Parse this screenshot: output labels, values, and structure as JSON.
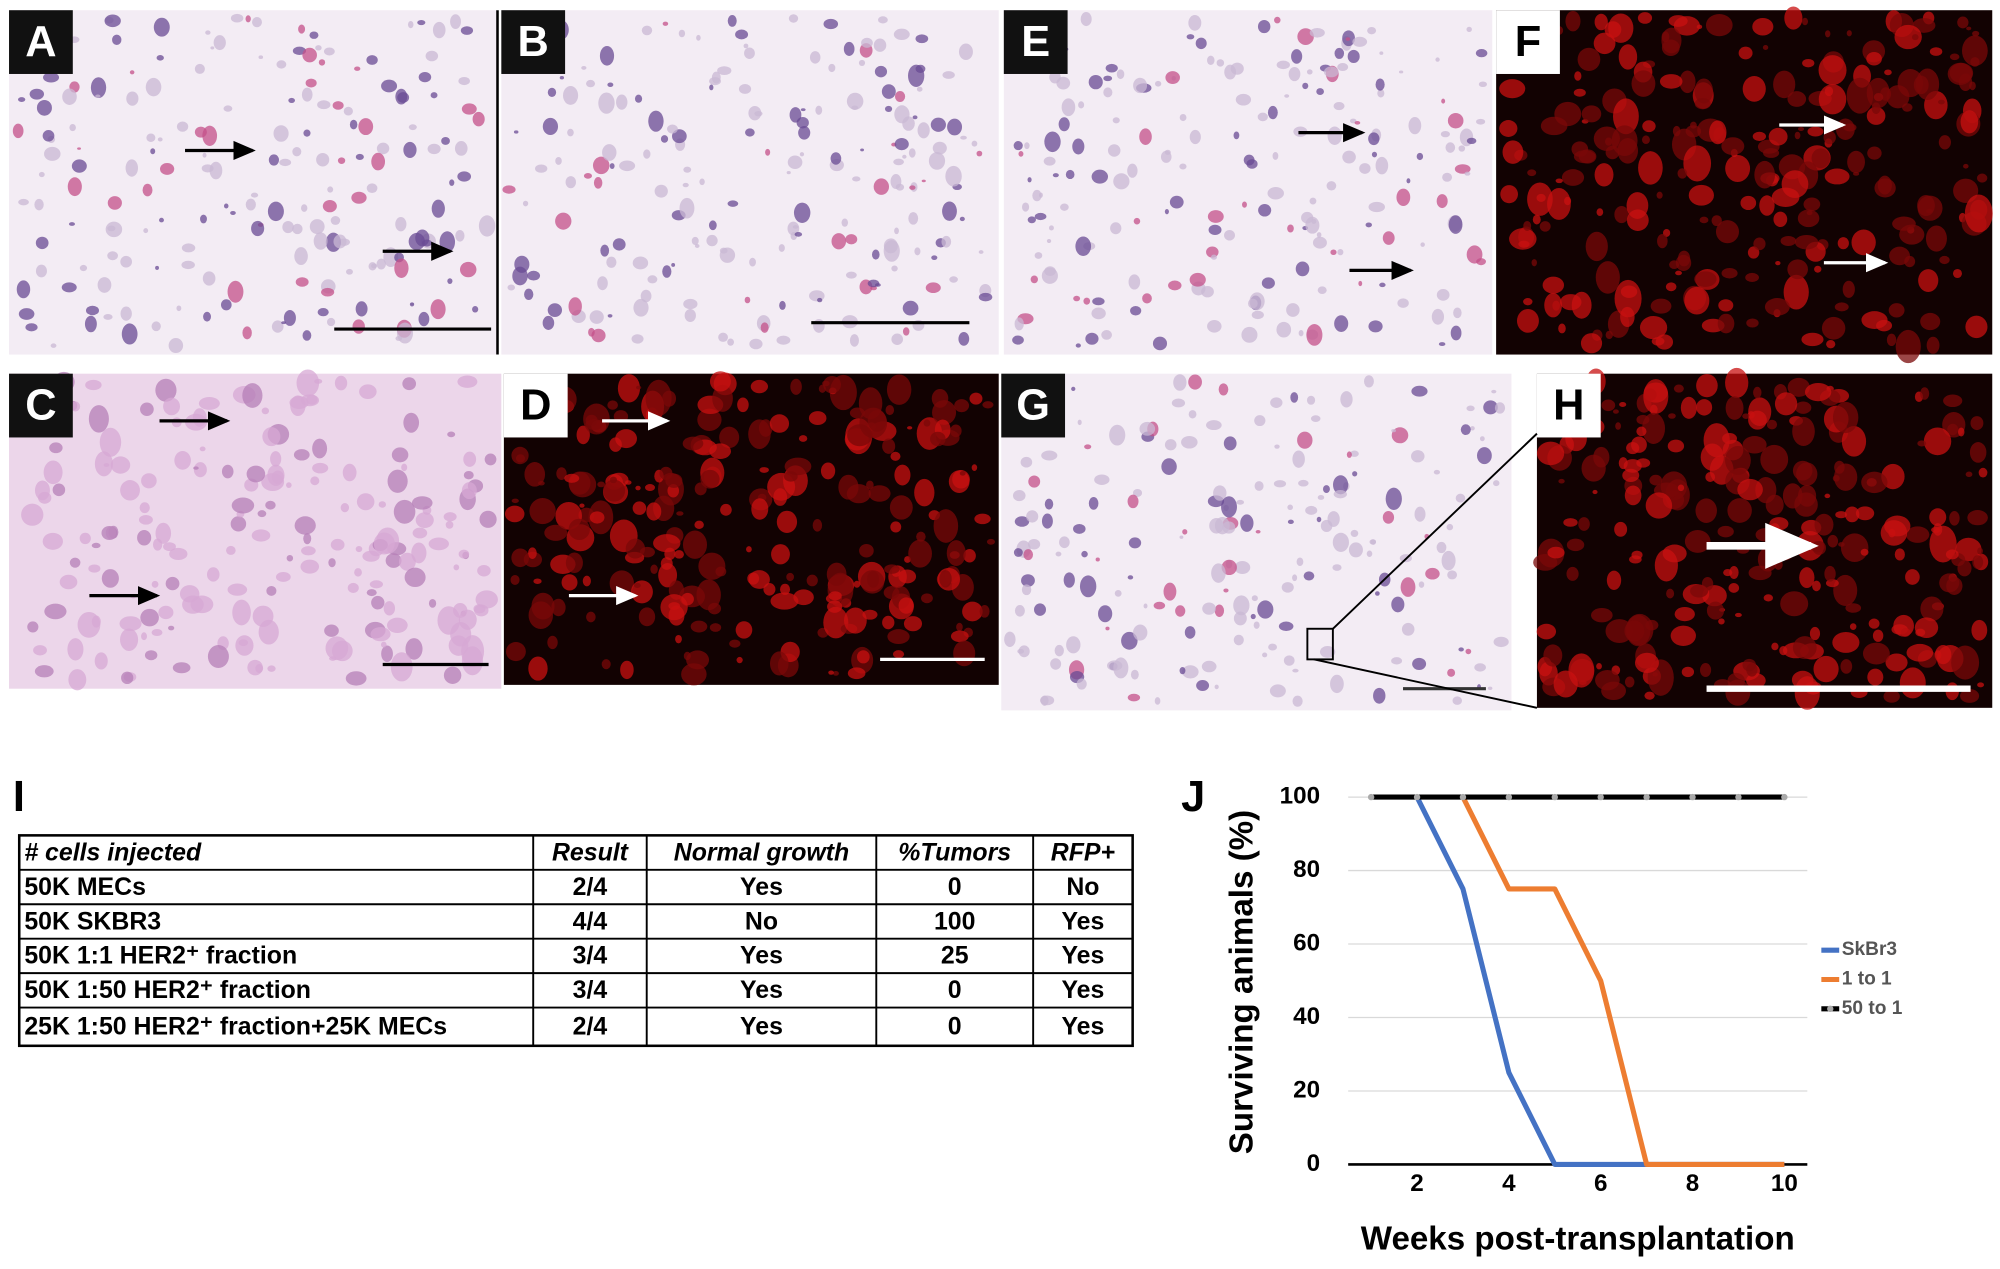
{
  "panels": [
    {
      "label": "A"
    },
    {
      "label": "B"
    },
    {
      "label": "E"
    },
    {
      "label": "F"
    },
    {
      "label": "C"
    },
    {
      "label": "D"
    },
    {
      "label": "G"
    },
    {
      "label": "H"
    }
  ],
  "table": {
    "label": "I",
    "header": [
      "# cells injected",
      "Result",
      "Normal growth",
      "%Tumors",
      "RFP+"
    ],
    "rows": [
      [
        "50K MECs",
        "2/4",
        "Yes",
        "0",
        "No"
      ],
      [
        "50K SKBR3",
        "4/4",
        "No",
        "100",
        "Yes"
      ],
      [
        "50K 1:1 HER2⁺ fraction",
        "3/4",
        "Yes",
        "25",
        "Yes"
      ],
      [
        "50K 1:50 HER2⁺ fraction",
        "3/4",
        "Yes",
        "0",
        "Yes"
      ],
      [
        "25K 1:50 HER2⁺ fraction+25K MECs",
        "2/4",
        "Yes",
        "0",
        "Yes"
      ]
    ]
  },
  "chart_data": {
    "type": "line",
    "label": "J",
    "x_label": "Weeks post-transplantation",
    "y_label": "Surviving animals (%)",
    "categories": [
      null,
      "2",
      null,
      "4",
      null,
      "6",
      null,
      "8",
      null,
      "10"
    ],
    "series": [
      {
        "name": "SkBr3",
        "color": "#4472c4",
        "values": [
          null,
          100,
          75,
          25,
          0,
          0,
          0,
          0,
          0,
          0
        ]
      },
      {
        "name": "1 to 1",
        "color": "#ed7d31",
        "values": [
          null,
          null,
          100,
          75,
          75,
          50,
          0,
          0,
          0,
          0
        ]
      },
      {
        "name": "50 to 1",
        "color": "#000000",
        "marker": true,
        "values": [
          100,
          100,
          100,
          100,
          100,
          100,
          100,
          100,
          100,
          100
        ]
      }
    ],
    "ylim": [
      0,
      100
    ],
    "yticks": [
      0,
      20,
      40,
      60,
      80,
      100
    ],
    "grid": true,
    "legend": "right"
  }
}
